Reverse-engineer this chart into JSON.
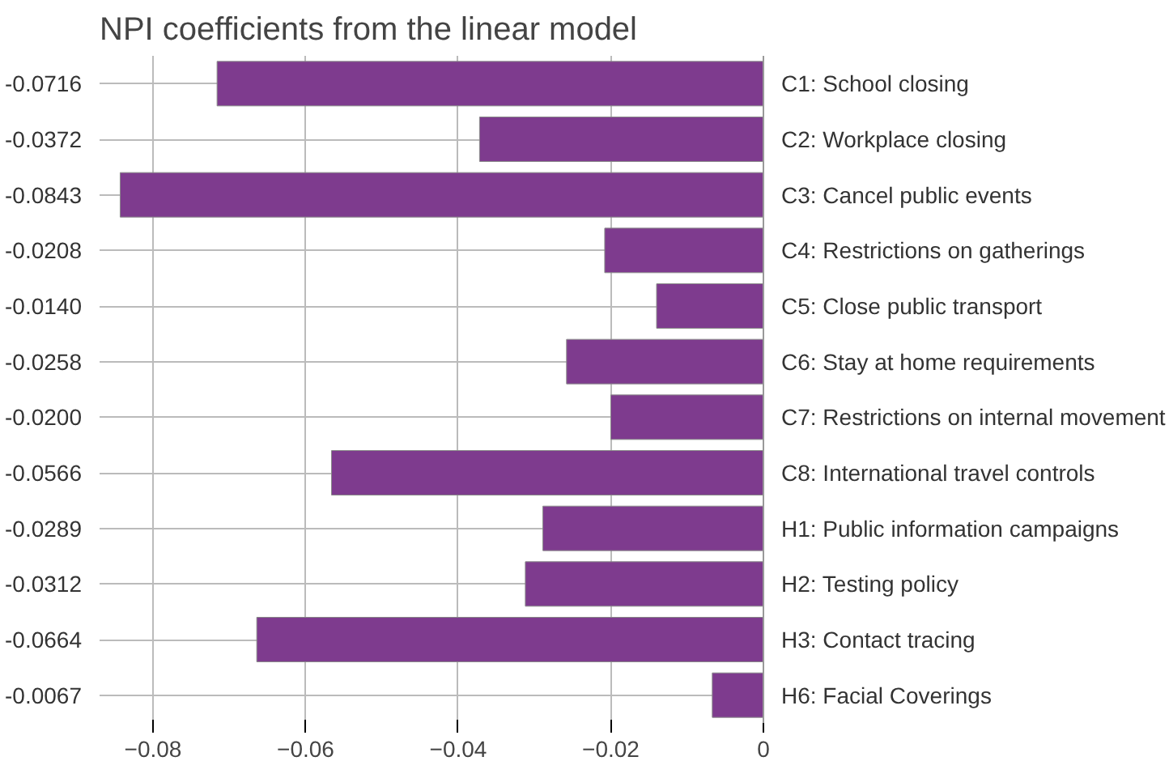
{
  "chart_data": {
    "type": "bar",
    "orientation": "horizontal",
    "title": "NPI coefficients from the linear model",
    "categories": [
      "C1: School closing",
      "C2: Workplace closing",
      "C3: Cancel public events",
      "C4: Restrictions on gatherings",
      "C5: Close public transport",
      "C6: Stay at home requirements",
      "C7: Restrictions on internal movement",
      "C8: International travel controls",
      "H1: Public information campaigns",
      "H2: Testing policy",
      "H3: Contact tracing",
      "H6: Facial Coverings"
    ],
    "values": [
      -0.0716,
      -0.0372,
      -0.0843,
      -0.0208,
      -0.014,
      -0.0258,
      -0.02,
      -0.0566,
      -0.0289,
      -0.0312,
      -0.0664,
      -0.0067
    ],
    "value_labels": [
      "-0.0716",
      "-0.0372",
      "-0.0843",
      "-0.0208",
      "-0.0140",
      "-0.0258",
      "-0.0200",
      "-0.0566",
      "-0.0289",
      "-0.0312",
      "-0.0664",
      "-0.0067"
    ],
    "color": "#7e3b8e",
    "xlim": [
      -0.087,
      0
    ],
    "xticks": [
      {
        "value": -0.08,
        "label": "−0.08"
      },
      {
        "value": -0.06,
        "label": "−0.06"
      },
      {
        "value": -0.04,
        "label": "−0.04"
      },
      {
        "value": -0.02,
        "label": "−0.02"
      },
      0
    ],
    "grid": true
  }
}
